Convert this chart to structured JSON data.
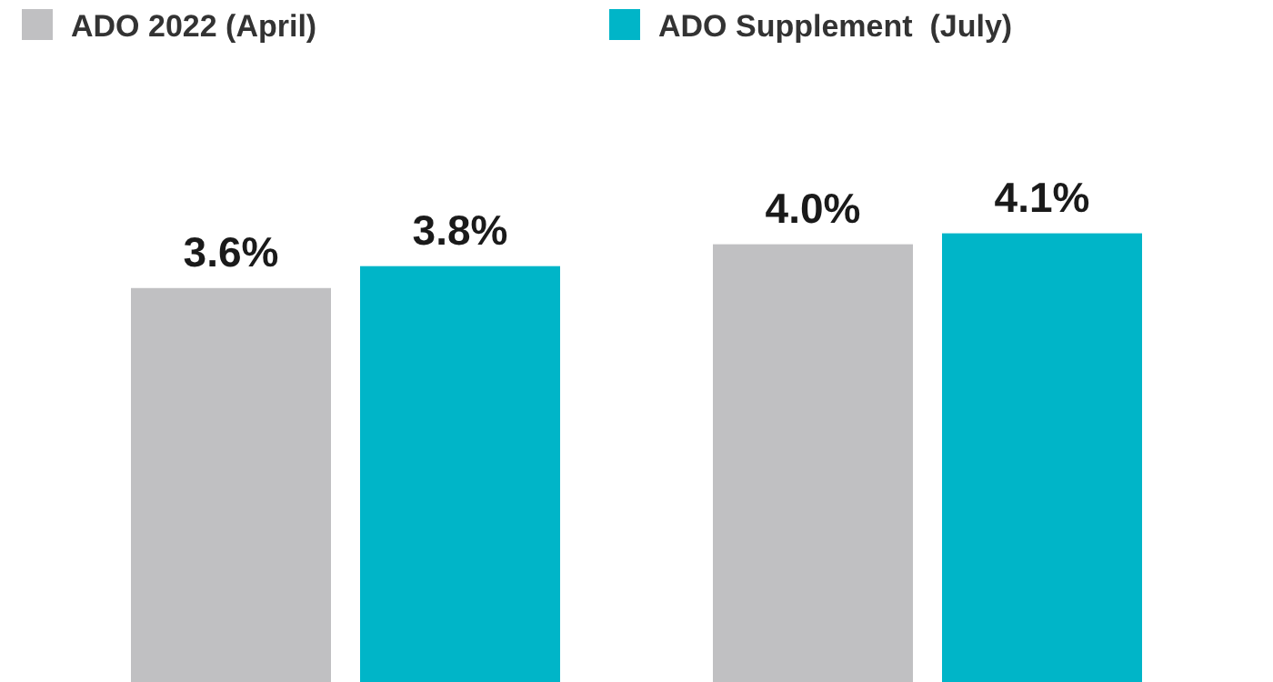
{
  "chart_data": {
    "type": "bar",
    "categories": [
      null,
      null
    ],
    "series": [
      {
        "name": "ADO 2022 (April)",
        "color": "#c0c0c2",
        "values": [
          3.6,
          4.0
        ],
        "value_labels": [
          "3.6%",
          "4.0%"
        ]
      },
      {
        "name": "ADO Supplement  (July)",
        "color": "#00b5c8",
        "values": [
          3.8,
          4.1
        ],
        "value_labels": [
          "3.8%",
          "4.1%"
        ]
      }
    ],
    "legend": "top left"
  }
}
